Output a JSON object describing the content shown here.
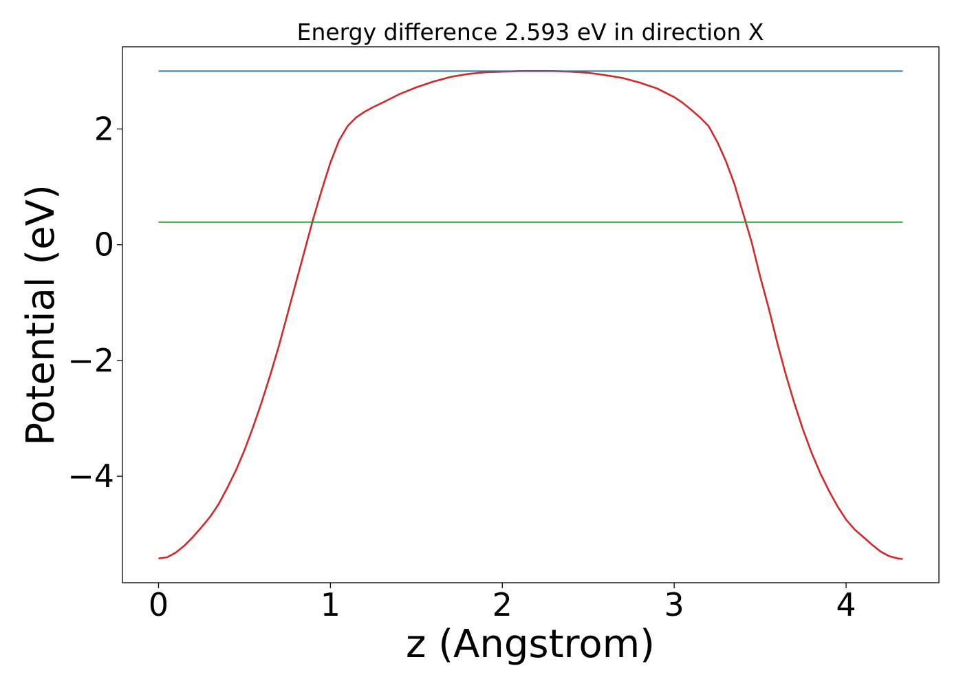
{
  "chart_data": {
    "type": "line",
    "title": "Energy difference 2.593 eV in direction X",
    "xlabel": "z (Angstrom)",
    "ylabel": "Potential (eV)",
    "xlim": [
      -0.21,
      4.54
    ],
    "ylim": [
      -5.84,
      3.42
    ],
    "xticks": [
      0,
      1,
      2,
      3,
      4
    ],
    "yticks": [
      -4,
      -2,
      0,
      2
    ],
    "xtick_labels": [
      "0",
      "1",
      "2",
      "3",
      "4"
    ],
    "ytick_labels": [
      "−4",
      "−2",
      "0",
      "2"
    ],
    "grid": false,
    "legend": "none",
    "series": [
      {
        "color": "#d62728",
        "x": [
          0,
          0.05,
          0.1,
          0.15,
          0.2,
          0.25,
          0.3,
          0.35,
          0.4,
          0.45,
          0.5,
          0.55,
          0.6,
          0.65,
          0.7,
          0.75,
          0.8,
          0.85,
          0.9,
          0.95,
          1.0,
          1.05,
          1.1,
          1.15,
          1.2,
          1.25,
          1.3,
          1.4,
          1.5,
          1.6,
          1.7,
          1.8,
          1.9,
          2.0,
          2.1,
          2.2,
          2.3,
          2.4,
          2.5,
          2.6,
          2.7,
          2.8,
          2.9,
          3.0,
          3.05,
          3.1,
          3.15,
          3.2,
          3.25,
          3.3,
          3.35,
          3.4,
          3.45,
          3.5,
          3.55,
          3.6,
          3.65,
          3.7,
          3.75,
          3.8,
          3.85,
          3.9,
          3.95,
          4.0,
          4.05,
          4.1,
          4.15,
          4.2,
          4.25,
          4.3,
          4.33
        ],
        "y": [
          -5.42,
          -5.4,
          -5.32,
          -5.2,
          -5.05,
          -4.88,
          -4.7,
          -4.48,
          -4.2,
          -3.9,
          -3.55,
          -3.15,
          -2.72,
          -2.25,
          -1.75,
          -1.2,
          -0.65,
          -0.1,
          0.45,
          0.95,
          1.42,
          1.8,
          2.05,
          2.2,
          2.3,
          2.38,
          2.45,
          2.6,
          2.72,
          2.82,
          2.9,
          2.95,
          2.98,
          2.99,
          3.0,
          3.0,
          3.0,
          2.99,
          2.97,
          2.93,
          2.88,
          2.8,
          2.7,
          2.55,
          2.45,
          2.33,
          2.2,
          2.05,
          1.78,
          1.45,
          1.05,
          0.55,
          0.05,
          -0.55,
          -1.1,
          -1.7,
          -2.25,
          -2.75,
          -3.2,
          -3.6,
          -3.95,
          -4.25,
          -4.52,
          -4.75,
          -4.92,
          -5.05,
          -5.18,
          -5.3,
          -5.38,
          -5.42,
          -5.43
        ]
      },
      {
        "color": "#1f77b4",
        "x": [
          0,
          4.33
        ],
        "y": [
          3.0,
          3.0
        ]
      },
      {
        "color": "#2ca02c",
        "x": [
          0,
          4.33
        ],
        "y": [
          0.39,
          0.39
        ]
      }
    ]
  }
}
